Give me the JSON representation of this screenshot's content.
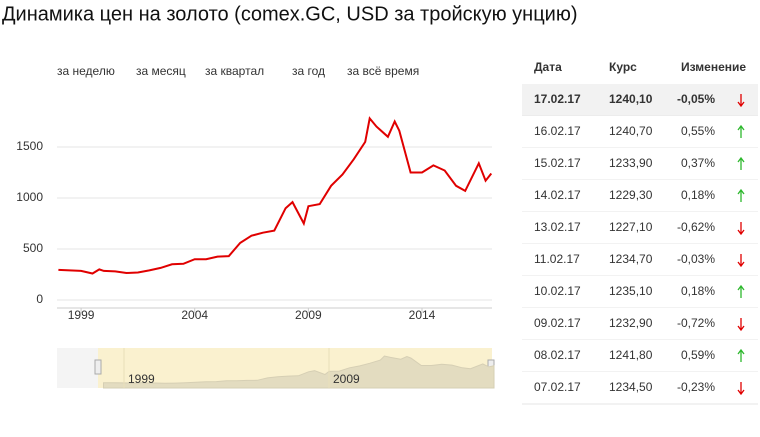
{
  "title": "Динамика цен на золото (comex.GC, USD за тройскую унцию)",
  "range_buttons": [
    "за неделю",
    "за месяц",
    "за квартал",
    "за год",
    "за всё время"
  ],
  "chart_data": {
    "type": "line",
    "x": [
      1998,
      1998.5,
      1999,
      1999.5,
      1999.8,
      2000,
      2000.5,
      2001,
      2001.5,
      2002,
      2002.5,
      2003,
      2003.5,
      2004,
      2004.5,
      2005,
      2005.5,
      2006,
      2006.5,
      2007,
      2007.5,
      2008,
      2008.3,
      2008.8,
      2009,
      2009.5,
      2010,
      2010.5,
      2011,
      2011.5,
      2011.7,
      2012,
      2012.5,
      2012.8,
      2013,
      2013.5,
      2014,
      2014.5,
      2015,
      2015.5,
      2015.9,
      2016.5,
      2016.8,
      2017.05
    ],
    "series": [
      {
        "color": "#e00000",
        "values": [
          295,
          290,
          285,
          260,
          300,
          285,
          280,
          265,
          270,
          290,
          315,
          350,
          355,
          400,
          400,
          425,
          430,
          560,
          630,
          660,
          680,
          900,
          960,
          750,
          920,
          940,
          1120,
          1230,
          1380,
          1550,
          1780,
          1700,
          1600,
          1750,
          1660,
          1250,
          1250,
          1320,
          1270,
          1120,
          1070,
          1340,
          1170,
          1240
        ]
      }
    ],
    "xlim": [
      1997.94,
      2017.08
    ],
    "ylim": [
      0,
      2000
    ],
    "xticks": [
      1999,
      2004,
      2009,
      2014
    ],
    "yticks": [
      0,
      500,
      1000,
      1500
    ],
    "grid": true,
    "navigator_xticks": [
      1999,
      2009
    ]
  },
  "table": {
    "headers": [
      "Дата",
      "Курс",
      "Изменение"
    ],
    "rows": [
      [
        "17.02.17",
        "1240,10",
        "-0,05%"
      ],
      [
        "16.02.17",
        "1240,70",
        "0,55%"
      ],
      [
        "15.02.17",
        "1233,90",
        "0,37%"
      ],
      [
        "14.02.17",
        "1229,30",
        "0,18%"
      ],
      [
        "13.02.17",
        "1227,10",
        "-0,62%"
      ],
      [
        "11.02.17",
        "1234,70",
        "-0,03%"
      ],
      [
        "10.02.17",
        "1235,10",
        "0,18%"
      ],
      [
        "09.02.17",
        "1232,90",
        "-0,72%"
      ],
      [
        "08.02.17",
        "1241,80",
        "0,59%"
      ],
      [
        "07.02.17",
        "1234,50",
        "-0,23%"
      ]
    ]
  }
}
